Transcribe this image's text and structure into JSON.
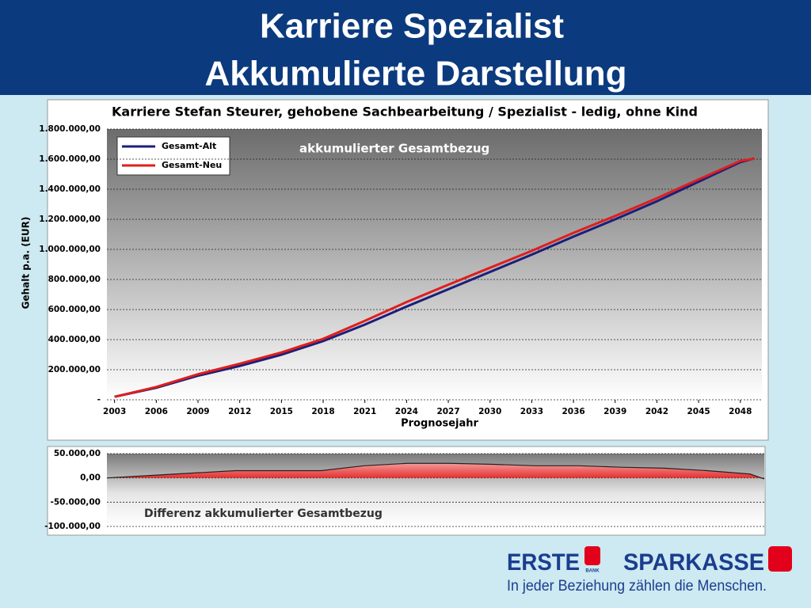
{
  "header": {
    "title": [
      "Karriere Spezialist",
      "Akkumulierte Darstellung"
    ]
  },
  "chart_data": [
    {
      "type": "line",
      "title": "Karriere Stefan Steurer, gehobene Sachbearbeitung / Spezialist - ledig, ohne Kind",
      "annotation": "akkumulierter Gesamtbezug",
      "x_label": "Prognosejahr",
      "y_label": "Gehalt p.a. (EUR)",
      "x": [
        2003,
        2006,
        2009,
        2012,
        2015,
        2018,
        2021,
        2024,
        2027,
        2030,
        2033,
        2036,
        2039,
        2042,
        2045,
        2048,
        2049
      ],
      "series": [
        {
          "name": "Gesamt-Alt",
          "color": "#1a1f7a",
          "values": [
            20000,
            80000,
            160000,
            225000,
            300000,
            390000,
            500000,
            620000,
            735000,
            850000,
            965000,
            1085000,
            1200000,
            1320000,
            1450000,
            1580000,
            1605000
          ]
        },
        {
          "name": "Gesamt-Neu",
          "color": "#e01e1e",
          "values": [
            20000,
            85000,
            170000,
            240000,
            315000,
            405000,
            525000,
            650000,
            765000,
            878000,
            990000,
            1110000,
            1222000,
            1340000,
            1465000,
            1588000,
            1603000
          ]
        }
      ],
      "xlim": [
        2002.45,
        2049.55
      ],
      "xticks": [
        2003,
        2006,
        2009,
        2012,
        2015,
        2018,
        2021,
        2024,
        2027,
        2030,
        2033,
        2036,
        2039,
        2042,
        2045,
        2048
      ],
      "ylim": [
        0,
        1800000
      ],
      "yticks": [
        {
          "value": 0,
          "label": "-"
        },
        {
          "value": 200000,
          "label": "200.000,00"
        },
        {
          "value": 400000,
          "label": "400.000,00"
        },
        {
          "value": 600000,
          "label": "600.000,00"
        },
        {
          "value": 800000,
          "label": "800.000,00"
        },
        {
          "value": 1000000,
          "label": "1.000.000,00"
        },
        {
          "value": 1200000,
          "label": "1.200.000,00"
        },
        {
          "value": 1400000,
          "label": "1.400.000,00"
        },
        {
          "value": 1600000,
          "label": "1.600.000,00"
        },
        {
          "value": 1800000,
          "label": "1.800.000,00"
        }
      ],
      "grid": true,
      "legend": "top-left"
    },
    {
      "type": "area",
      "annotation": "Differenz akkumulierter Gesamtbezug",
      "x": [
        2003,
        2006,
        2009,
        2012,
        2015,
        2018,
        2021,
        2024,
        2027,
        2030,
        2033,
        2036,
        2039,
        2042,
        2045,
        2048,
        2049
      ],
      "series": [
        {
          "color": "#e82020",
          "values": [
            0,
            5000,
            10000,
            15000,
            15000,
            15000,
            25000,
            30000,
            30000,
            28000,
            25000,
            25000,
            22000,
            20000,
            15000,
            8000,
            -2000
          ]
        }
      ],
      "xlim": [
        2003,
        2049
      ],
      "ylim": [
        -100000,
        50000
      ],
      "yticks": [
        {
          "value": 50000,
          "label": "50.000,00"
        },
        {
          "value": 0,
          "label": "0,00"
        },
        {
          "value": -50000,
          "label": "-50.000,00"
        },
        {
          "value": -100000,
          "label": "-100.000,00"
        }
      ],
      "grid": true
    }
  ],
  "logo": {
    "brand_1": "ERSTE",
    "brand_1_sub": "BANK",
    "brand_2": "SPARKASSE",
    "slogan": "In jeder Beziehung zählen die Menschen."
  }
}
